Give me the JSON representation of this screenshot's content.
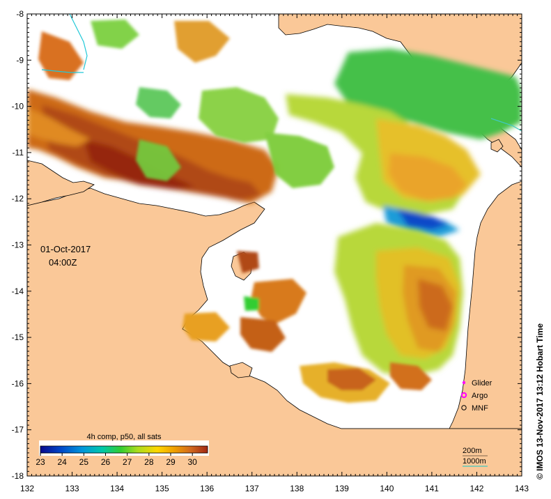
{
  "map": {
    "lon_range": [
      132,
      143
    ],
    "lat_range": [
      -18,
      -8
    ],
    "lon_ticks": [
      "132",
      "133",
      "134",
      "135",
      "136",
      "137",
      "138",
      "139",
      "140",
      "141",
      "142",
      "143"
    ],
    "lat_ticks": [
      "-8",
      "-9",
      "-10",
      "-11",
      "-12",
      "-13",
      "-14",
      "-15",
      "-16",
      "-17",
      "-18"
    ],
    "date": "01-Oct-2017",
    "time": "04:00Z",
    "credit": "© IMOS 13-Nov-2017 13:12 Hobart Time",
    "land_color": "#fac898",
    "ocean_color": "#ffffff"
  },
  "colorbar": {
    "title": "4h comp, p50, all sats",
    "ticks": [
      "23",
      "24",
      "25",
      "26",
      "27",
      "28",
      "29",
      "30"
    ],
    "range": [
      23,
      30.7
    ],
    "colors": [
      "#0a0a8c",
      "#0046c8",
      "#0096dc",
      "#00c8aa",
      "#32cd32",
      "#aadc1e",
      "#ffd700",
      "#f0a000",
      "#d2691e",
      "#a02814"
    ]
  },
  "legend": {
    "glider": "Glider",
    "argo": "Argo",
    "mnf": "MNF",
    "glider_color": "#ff00ff",
    "argo_color": "#ff00ff"
  },
  "bathymetry": {
    "label_200": "200m",
    "label_1000": "1000m",
    "color_1000": "#40c8c0"
  }
}
